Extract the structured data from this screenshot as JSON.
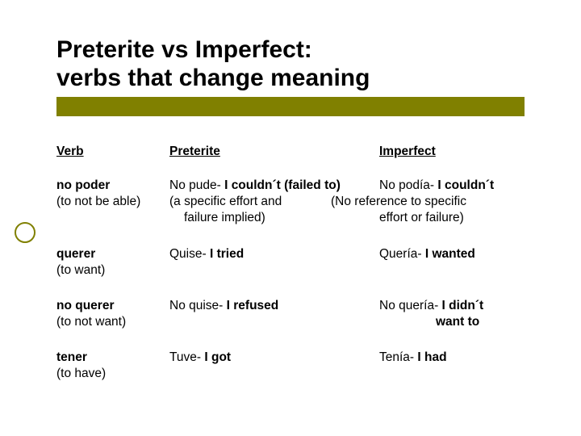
{
  "colors": {
    "accent": "#808000",
    "text": "#000000",
    "background": "#ffffff"
  },
  "title": {
    "line1": "Preterite vs Imperfect:",
    "line2": "verbs that change meaning"
  },
  "headers": {
    "verb": "Verb",
    "preterite": "Preterite",
    "imperfect": "Imperfect"
  },
  "rows": [
    {
      "verb": "no poder",
      "verb_sub": "(to not be able)",
      "pret_l1a": "No pude- ",
      "pret_l1b": "I couldn´t  (failed to)",
      "pret_l2": "(a specific effort and",
      "pret_l3": "failure implied)",
      "impf_l1a": "No podía- ",
      "impf_l1b": "I couldn´t",
      "impf_l2": "(No reference to specific",
      "impf_l3": "effort or failure)"
    },
    {
      "verb": "querer",
      "verb_sub": "(to want)",
      "pret_a": "Quise- ",
      "pret_b": "I tried",
      "impf_a": "Quería- ",
      "impf_b": "I wanted"
    },
    {
      "verb": "no querer",
      "verb_sub": "(to not want)",
      "pret_a": "No quise- ",
      "pret_b": "I refused",
      "impf_a": "No quería- ",
      "impf_b": "I didn´t",
      "impf_l2": "want to"
    },
    {
      "verb": "tener",
      "verb_sub": "(to have)",
      "pret_a": "Tuve- ",
      "pret_b": "I got",
      "impf_a": "Tenía- ",
      "impf_b": "I had"
    }
  ]
}
